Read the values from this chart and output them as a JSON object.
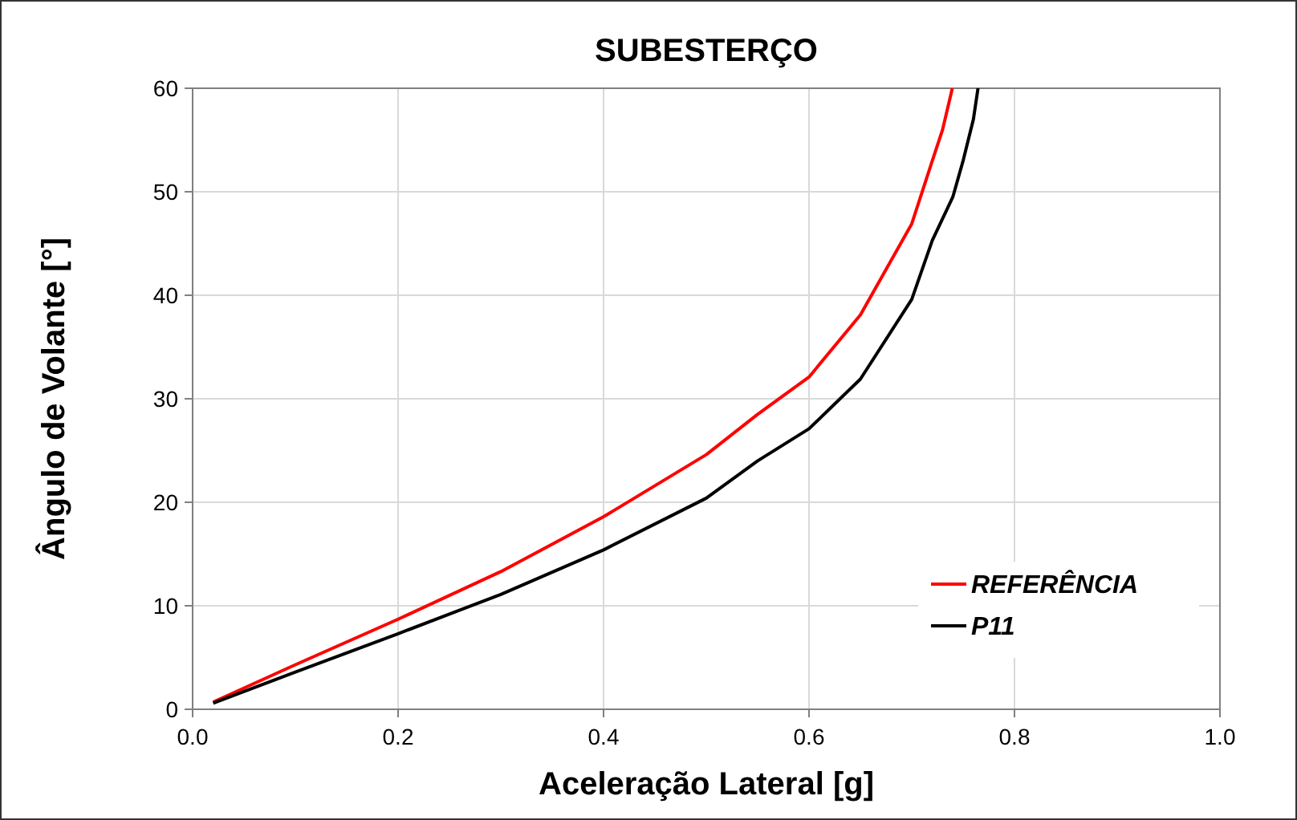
{
  "chart_data": {
    "type": "line",
    "title": "SUBESTERÇO",
    "xlabel": "Aceleração Lateral [g]",
    "ylabel": "Ângulo de Volante [°]",
    "xlim": [
      0,
      1
    ],
    "ylim": [
      0,
      60
    ],
    "xticks": [
      {
        "value": 0,
        "label": "0.0"
      },
      0.2,
      0.4,
      0.6,
      0.8,
      {
        "value": 1,
        "label": "1.0"
      }
    ],
    "yticks": [
      0,
      10,
      20,
      30,
      40,
      50,
      60
    ],
    "grid": true,
    "legend": "bottom right",
    "marker": "none",
    "line_style": "solid",
    "series": [
      {
        "name": "REFERÊNCIA",
        "color": "#ff0000",
        "x": [
          0.02,
          0.1,
          0.2,
          0.3,
          0.4,
          0.5,
          0.55,
          0.6,
          0.65,
          0.7,
          0.72,
          0.73,
          0.7395
        ],
        "values": [
          0.7,
          4.3,
          8.7,
          13.3,
          18.6,
          24.6,
          28.5,
          32.1,
          38.1,
          46.9,
          53,
          56,
          60
        ]
      },
      {
        "name": "P11",
        "color": "#000000",
        "x": [
          0.02,
          0.1,
          0.2,
          0.3,
          0.4,
          0.5,
          0.55,
          0.6,
          0.65,
          0.7,
          0.72,
          0.74,
          0.75,
          0.76,
          0.7645
        ],
        "values": [
          0.6,
          3.6,
          7.3,
          11.1,
          15.4,
          20.4,
          24,
          27.1,
          31.9,
          39.6,
          45.3,
          49.5,
          53,
          57,
          60
        ]
      }
    ]
  }
}
